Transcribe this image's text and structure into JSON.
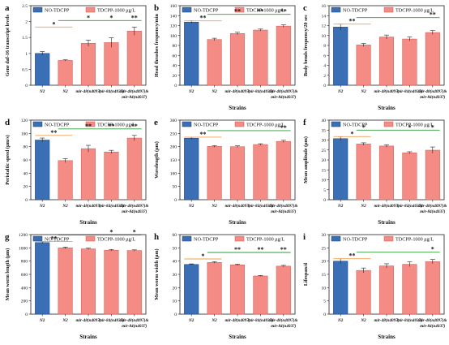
{
  "colors": {
    "control": "#3a6fb6",
    "control_edge": "#1e3f73",
    "treated": "#f48b84",
    "treated_edge": "#c45a55",
    "orange_line": "#f0a050",
    "green_line": "#2e9b3a"
  },
  "legend": {
    "control_label": "NO-TDCPP",
    "treated_label": "TDCPP-1000 μg/L"
  },
  "shared_categories": [
    "N2",
    "N2",
    "mir-48(n4097)",
    "mir-84(n4037)",
    "mir-48(n4097)& mir-84(n4037)"
  ],
  "chart_data": [
    {
      "panel": "a",
      "type": "bar",
      "ylabel": "Gene daf-16 transcript levels",
      "xlabel": "",
      "ylim": [
        0,
        2.5
      ],
      "yticks": [
        0,
        0.5,
        1.0,
        1.5,
        2.0,
        2.5
      ],
      "categories": [
        "N2",
        "N2",
        "mir-48(n4097)",
        "mir-84(n4037)",
        "mir-48(n4097)& mir-84(n4037)"
      ],
      "values": [
        1.0,
        0.78,
        1.32,
        1.34,
        1.7
      ],
      "errors": [
        0.06,
        0.02,
        0.1,
        0.15,
        0.13
      ],
      "significance": [
        {
          "label": "*",
          "color": "orange",
          "from": 0,
          "to": 1,
          "level": 0
        },
        {
          "label": "*",
          "color": "green",
          "from": 1,
          "to": 4,
          "level": 1,
          "stars_at": [
            2,
            3,
            4
          ],
          "stars": [
            "*",
            "*",
            "**"
          ]
        }
      ]
    },
    {
      "panel": "b",
      "type": "bar",
      "ylabel": "Head thrashes frequency/min",
      "xlabel": "Strains",
      "ylim": [
        0,
        160
      ],
      "yticks": [
        0,
        20,
        40,
        60,
        80,
        100,
        120,
        140,
        160
      ],
      "categories": [
        "N2",
        "N2",
        "mir-48(n4097)",
        "mir-84(n4037)",
        "mir-48(n4097)& mir-84(n4037)"
      ],
      "values": [
        127,
        92,
        104,
        111,
        119
      ],
      "errors": [
        2.5,
        2.5,
        2.5,
        2.0,
        2.5
      ],
      "significance": [
        {
          "label": "**",
          "color": "orange",
          "from": 0,
          "to": 1,
          "level": 0
        },
        {
          "label": "**",
          "color": "green",
          "from": 1,
          "to": 4,
          "level": 1,
          "stars_at": [
            2,
            3,
            4
          ],
          "stars": [
            "**",
            "**",
            "**"
          ]
        }
      ]
    },
    {
      "panel": "c",
      "type": "bar",
      "ylabel": "Body bends frequency/20 sec",
      "xlabel": "Strains",
      "ylim": [
        0,
        16
      ],
      "yticks": [
        0,
        2,
        4,
        6,
        8,
        10,
        12,
        14,
        16
      ],
      "categories": [
        "N2",
        "N2",
        "mir-48(n4097)",
        "mir-84(n4037)",
        "mir-48(n4097)& mir-84(n4037)"
      ],
      "values": [
        11.7,
        8.1,
        9.7,
        9.3,
        10.6
      ],
      "errors": [
        0.6,
        0.3,
        0.4,
        0.4,
        0.4
      ],
      "significance": [
        {
          "label": "**",
          "color": "orange",
          "from": 0,
          "to": 1,
          "level": 0
        },
        {
          "label": "**",
          "color": "green",
          "from": 1,
          "to": 4,
          "level": 1,
          "stars_at": [
            4
          ],
          "stars": [
            "**"
          ]
        }
      ]
    },
    {
      "panel": "d",
      "type": "bar",
      "ylabel": "Peristaltic speed (μm/s)",
      "xlabel": "Strains",
      "ylim": [
        0,
        120
      ],
      "yticks": [
        0,
        20,
        40,
        60,
        80,
        100,
        120
      ],
      "categories": [
        "N2",
        "N2",
        "mir-48(n4097)",
        "mir-84(n4037)",
        "mir-48(n4097)& mir-84(n4037)"
      ],
      "values": [
        90,
        59,
        77,
        72,
        93
      ],
      "errors": [
        3,
        3,
        5,
        2.5,
        4
      ],
      "significance": [
        {
          "label": "**",
          "color": "orange",
          "from": 0,
          "to": 1,
          "level": 0
        },
        {
          "label": "**",
          "color": "green",
          "from": 1,
          "to": 4,
          "level": 1,
          "stars_at": [
            2,
            3,
            4
          ],
          "stars": [
            "**",
            "**",
            "**"
          ]
        }
      ]
    },
    {
      "panel": "e",
      "type": "bar",
      "ylabel": "Wavelength (μm)",
      "xlabel": "Strains",
      "ylim": [
        0,
        300
      ],
      "yticks": [
        0,
        50,
        100,
        150,
        200,
        250,
        300
      ],
      "categories": [
        "N2",
        "N2",
        "mir-48(n4097)",
        "mir-84(n4037)",
        "mir-48(n4097)& mir-84(n4037)"
      ],
      "values": [
        232,
        201,
        200,
        208,
        220
      ],
      "errors": [
        4,
        3,
        3,
        3,
        4
      ],
      "significance": [
        {
          "label": "**",
          "color": "orange",
          "from": 0,
          "to": 1,
          "level": 0
        },
        {
          "label": "**",
          "color": "green",
          "from": 1,
          "to": 4,
          "level": 1,
          "stars_at": [
            4
          ],
          "stars": [
            "**"
          ]
        }
      ]
    },
    {
      "panel": "f",
      "type": "bar",
      "ylabel": "Mean amplitude (μm)",
      "xlabel": "Strains",
      "ylim": [
        0,
        40
      ],
      "yticks": [
        0,
        5,
        10,
        15,
        20,
        25,
        30,
        35,
        40
      ],
      "categories": [
        "N2",
        "N2",
        "mir-48(n4097)",
        "mir-84(n4037)",
        "mir-48(n4097)& mir-84(n4037)"
      ],
      "values": [
        30.7,
        28.0,
        27.0,
        23.6,
        24.9
      ],
      "errors": [
        1.0,
        0.6,
        0.6,
        0.5,
        1.6
      ],
      "significance": [
        {
          "label": "*",
          "color": "orange",
          "from": 0,
          "to": 1,
          "level": 0
        },
        {
          "label": "*",
          "color": "green",
          "from": 1,
          "to": 4,
          "level": 1,
          "stars_at": [
            1,
            3,
            4
          ],
          "stars": [
            "*",
            "*",
            "*"
          ]
        }
      ]
    },
    {
      "panel": "g",
      "type": "bar",
      "ylabel": "Mean worm length (μm)",
      "xlabel": "Strains",
      "ylim": [
        0,
        1200
      ],
      "yticks": [
        0,
        200,
        400,
        600,
        800,
        1000,
        1200
      ],
      "categories": [
        "N2",
        "N2",
        "mir-48(n4097)",
        "mir-84(n4037)",
        "mir-48(n4097)& mir-84(n4037)"
      ],
      "values": [
        1080,
        1000,
        985,
        965,
        960
      ],
      "errors": [
        15,
        12,
        10,
        10,
        10
      ],
      "significance": [
        {
          "label": "**",
          "color": "orange",
          "from": 0,
          "to": 1,
          "level": 0
        },
        {
          "label": "*",
          "color": "green",
          "from": 1,
          "to": 4,
          "level": 1,
          "stars_at": [
            3,
            4
          ],
          "stars": [
            "*",
            "*"
          ]
        }
      ]
    },
    {
      "panel": "h",
      "type": "bar",
      "ylabel": "Mean worm width (μm)",
      "xlabel": "Strains",
      "ylim": [
        0,
        60
      ],
      "yticks": [
        0,
        10,
        20,
        30,
        40,
        50,
        60
      ],
      "categories": [
        "N2",
        "N2",
        "mir-48(n4097)",
        "mir-84(n4037)",
        "mir-48(n4097)& mir-84(n4037)"
      ],
      "values": [
        37.5,
        39.0,
        37.2,
        28.8,
        36.2
      ],
      "errors": [
        0.4,
        0.6,
        0.5,
        0.4,
        0.6
      ],
      "significance": [
        {
          "label": "*",
          "color": "orange",
          "from": 0,
          "to": 1,
          "level": 0
        },
        {
          "label": "**",
          "color": "green",
          "from": 1,
          "to": 4,
          "level": 1,
          "stars_at": [
            2,
            3,
            4
          ],
          "stars": [
            "**",
            "**",
            "**"
          ]
        }
      ]
    },
    {
      "panel": "i",
      "type": "bar",
      "ylabel": "Lifespan/d",
      "xlabel": "Strains",
      "ylim": [
        0,
        30
      ],
      "yticks": [
        0,
        5,
        10,
        15,
        20,
        25,
        30
      ],
      "categories": [
        "N2",
        "N2",
        "mir-48(n4097)",
        "mir-84(n4037)",
        "mir-48(n4097)& mir-84(n4037)"
      ],
      "values": [
        20.0,
        16.5,
        18.2,
        18.8,
        19.8
      ],
      "errors": [
        0.9,
        0.9,
        0.8,
        0.9,
        0.8
      ],
      "significance": [
        {
          "label": "**",
          "color": "orange",
          "from": 0,
          "to": 1,
          "level": 0
        },
        {
          "label": "*",
          "color": "green",
          "from": 1,
          "to": 4,
          "level": 1,
          "stars_at": [
            4
          ],
          "stars": [
            "*"
          ]
        }
      ]
    }
  ]
}
